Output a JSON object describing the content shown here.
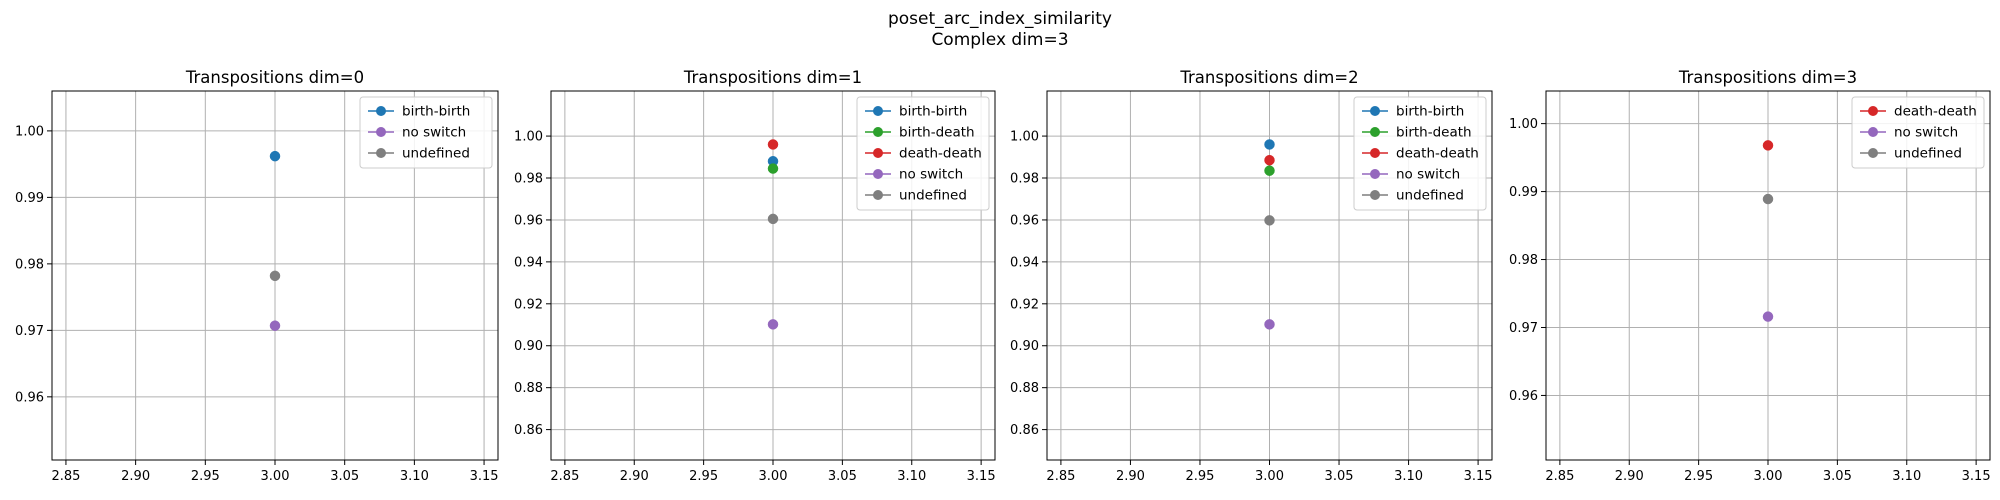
{
  "figure": {
    "title_line1": "poset_arc_index_similarity",
    "title_line2": "Complex dim=3"
  },
  "colors": {
    "birth-birth": "#1f77b4",
    "birth-death": "#2ca02c",
    "death-death": "#d62728",
    "no switch": "#9467bd",
    "undefined": "#7f7f7f",
    "grid": "#b0b0b0"
  },
  "chart_data": [
    {
      "type": "scatter",
      "title": "Transpositions dim=0",
      "xlim": [
        2.84,
        3.16
      ],
      "ylim": [
        0.9505,
        1.006
      ],
      "xticks": [
        "2.85",
        "2.90",
        "2.95",
        "3.00",
        "3.05",
        "3.10",
        "3.15"
      ],
      "yticks": [
        "0.96",
        "0.97",
        "0.98",
        "0.99",
        "1.00"
      ],
      "grid": true,
      "legend_position": "top-right",
      "series": [
        {
          "name": "birth-birth",
          "x": [
            3.0
          ],
          "y": [
            0.9962
          ]
        },
        {
          "name": "no switch",
          "x": [
            3.0
          ],
          "y": [
            0.9707
          ]
        },
        {
          "name": "undefined",
          "x": [
            3.0
          ],
          "y": [
            0.9782
          ]
        }
      ]
    },
    {
      "type": "scatter",
      "title": "Transpositions dim=1",
      "xlim": [
        2.84,
        3.16
      ],
      "ylim": [
        0.8455,
        1.0215
      ],
      "xticks": [
        "2.85",
        "2.90",
        "2.95",
        "3.00",
        "3.05",
        "3.10",
        "3.15"
      ],
      "yticks": [
        "0.86",
        "0.88",
        "0.90",
        "0.92",
        "0.94",
        "0.96",
        "0.98",
        "1.00"
      ],
      "grid": true,
      "legend_position": "top-right",
      "series": [
        {
          "name": "birth-birth",
          "x": [
            3.0
          ],
          "y": [
            0.988
          ]
        },
        {
          "name": "birth-death",
          "x": [
            3.0
          ],
          "y": [
            0.9845
          ]
        },
        {
          "name": "death-death",
          "x": [
            3.0
          ],
          "y": [
            0.996
          ]
        },
        {
          "name": "no switch",
          "x": [
            3.0
          ],
          "y": [
            0.9102
          ]
        },
        {
          "name": "undefined",
          "x": [
            3.0
          ],
          "y": [
            0.9605
          ]
        }
      ]
    },
    {
      "type": "scatter",
      "title": "Transpositions dim=2",
      "xlim": [
        2.84,
        3.16
      ],
      "ylim": [
        0.8455,
        1.0215
      ],
      "xticks": [
        "2.85",
        "2.90",
        "2.95",
        "3.00",
        "3.05",
        "3.10",
        "3.15"
      ],
      "yticks": [
        "0.86",
        "0.88",
        "0.90",
        "0.92",
        "0.94",
        "0.96",
        "0.98",
        "1.00"
      ],
      "grid": true,
      "legend_position": "top-right",
      "series": [
        {
          "name": "birth-birth",
          "x": [
            3.0
          ],
          "y": [
            0.996
          ]
        },
        {
          "name": "birth-death",
          "x": [
            3.0
          ],
          "y": [
            0.9835
          ]
        },
        {
          "name": "death-death",
          "x": [
            3.0
          ],
          "y": [
            0.9885
          ]
        },
        {
          "name": "no switch",
          "x": [
            3.0
          ],
          "y": [
            0.9102
          ]
        },
        {
          "name": "undefined",
          "x": [
            3.0
          ],
          "y": [
            0.9598
          ]
        }
      ]
    },
    {
      "type": "scatter",
      "title": "Transpositions dim=3",
      "xlim": [
        2.84,
        3.16
      ],
      "ylim": [
        0.9505,
        1.0048
      ],
      "xticks": [
        "2.85",
        "2.90",
        "2.95",
        "3.00",
        "3.05",
        "3.10",
        "3.15"
      ],
      "yticks": [
        "0.96",
        "0.97",
        "0.98",
        "0.99",
        "1.00"
      ],
      "grid": true,
      "legend_position": "top-right",
      "series": [
        {
          "name": "death-death",
          "x": [
            3.0
          ],
          "y": [
            0.9968
          ]
        },
        {
          "name": "no switch",
          "x": [
            3.0
          ],
          "y": [
            0.9716
          ]
        },
        {
          "name": "undefined",
          "x": [
            3.0
          ],
          "y": [
            0.9889
          ]
        }
      ]
    }
  ]
}
